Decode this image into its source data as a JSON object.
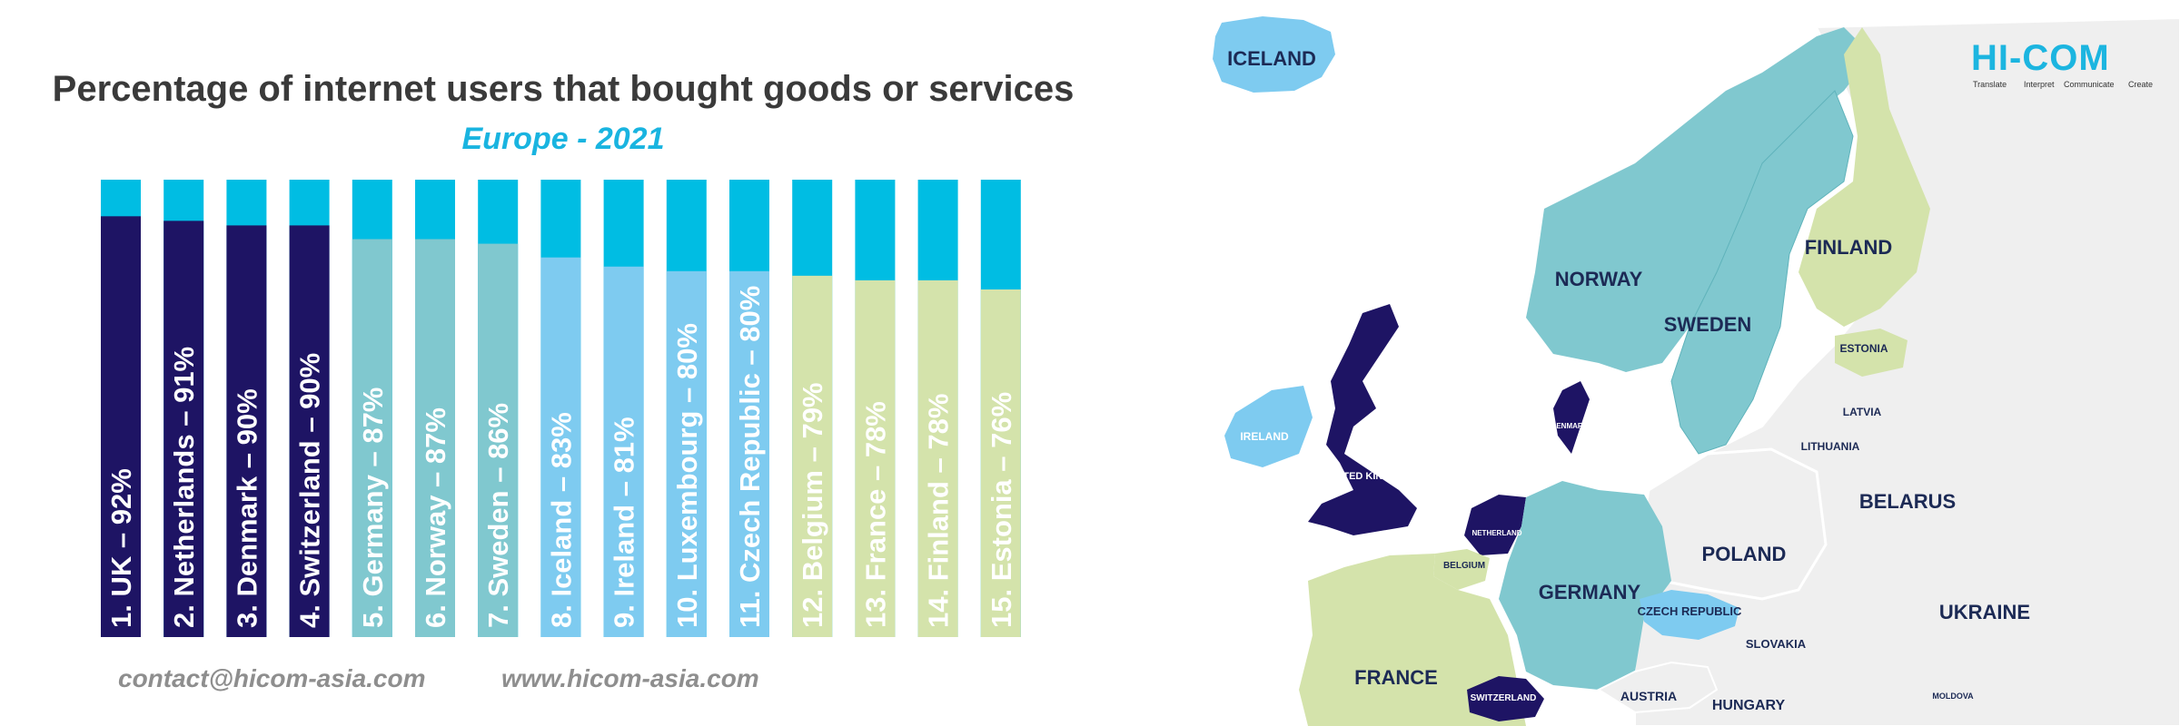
{
  "chart_data": {
    "type": "bar",
    "title": "Percentage of internet users that bought goods or services",
    "subtitle": "Europe - 2021",
    "ylim": [
      0,
      100
    ],
    "categories": [
      "UK",
      "Netherlands",
      "Denmark",
      "Switzerland",
      "Germany",
      "Norway",
      "Sweden",
      "Iceland",
      "Ireland",
      "Luxembourg",
      "Czech Republic",
      "Belgium",
      "France",
      "Finland",
      "Estonia"
    ],
    "values": [
      92,
      91,
      90,
      90,
      87,
      87,
      86,
      83,
      81,
      80,
      80,
      79,
      78,
      78,
      76
    ],
    "labels": [
      "1. UK – 92%",
      "2. Netherlands – 91%",
      "3. Denmark – 90%",
      "4. Switzerland – 90%",
      "5. Germany – 87%",
      "6. Norway – 87%",
      "7. Sweden – 86%",
      "8. Iceland – 83%",
      "9. Ireland – 81%",
      "10. Luxembourg – 80%",
      "11. Czech Republic – 80%",
      "12. Belgium – 79%",
      "13. France – 78%",
      "14. Finland – 78%",
      "15. Estonia – 76%"
    ],
    "colors": [
      "#1e1464",
      "#1e1464",
      "#1e1464",
      "#1e1464",
      "#80c8cf",
      "#80c8cf",
      "#80c8cf",
      "#7ecbf0",
      "#7ecbf0",
      "#7ecbf0",
      "#7ecbf0",
      "#d4e3ab",
      "#d4e3ab",
      "#d4e3ab",
      "#d4e3ab"
    ],
    "remainder_color": "#00bde3"
  },
  "footer": {
    "email": "contact@hicom-asia.com",
    "website": "www.hicom-asia.com"
  },
  "logo": {
    "text": "HI-COM",
    "tagline": [
      "Translate",
      "Interpret",
      "Communicate",
      "Create"
    ]
  },
  "map": {
    "labels": [
      "ICELAND",
      "NORWAY",
      "SWEDEN",
      "FINLAND",
      "ESTONIA",
      "LATVIA",
      "LITHUANIA",
      "BELARUS",
      "POLAND",
      "UKRAINE",
      "IRELAND",
      "UNITED KINGDOM",
      "DENMARK",
      "NETHERLAND",
      "BELGIUM",
      "GERMANY",
      "CZECH REPUBLIC",
      "SLOVAKIA",
      "FRANCE",
      "SWITZERLAND",
      "AUSTRIA",
      "HUNGARY",
      "MOLDOVA"
    ]
  }
}
